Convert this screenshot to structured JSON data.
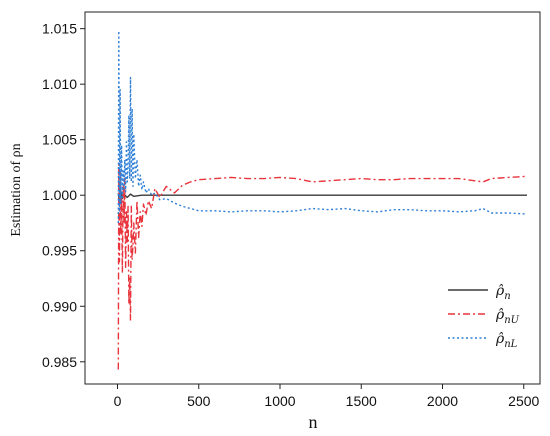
{
  "chart_data": {
    "type": "line",
    "title": "",
    "xlabel": "n",
    "ylabel": "Estimation of ρn",
    "xlim": [
      -200,
      2600
    ],
    "ylim": [
      0.983,
      1.0165
    ],
    "xticks": [
      0,
      500,
      1000,
      1500,
      2000,
      2500
    ],
    "xtick_labels": [
      "0",
      "500",
      "1000",
      "1500",
      "2000",
      "2500"
    ],
    "yticks": [
      0.985,
      0.99,
      0.995,
      1.0,
      1.005,
      1.01,
      1.015
    ],
    "ytick_labels": [
      "0.985",
      "0.990",
      "0.995",
      "1.000",
      "1.005",
      "1.010",
      "1.015"
    ],
    "grid": false,
    "legend_position": "lower-right",
    "series": [
      {
        "name": "ρ̂n",
        "legend_main": "ρ̂",
        "legend_sub": "n",
        "color": "#3a3a3a",
        "dash": "solid",
        "x": [
          5,
          10,
          20,
          30,
          40,
          60,
          80,
          100,
          150,
          200,
          300,
          500,
          1000,
          1500,
          2000,
          2520
        ],
        "y": [
          1.0002,
          0.9996,
          1.0004,
          0.9997,
          1.0001,
          0.9998,
          1.0001,
          0.9999,
          1.0,
          1.0,
          1.0,
          1.0,
          1.0,
          1.0,
          1.0,
          1.0
        ]
      },
      {
        "name": "ρ̂nU",
        "legend_main": "ρ̂",
        "legend_sub": "nU",
        "color": "#e8343c",
        "dash": "dashdot",
        "x": [
          5,
          8,
          12,
          16,
          20,
          25,
          30,
          35,
          40,
          45,
          50,
          55,
          60,
          65,
          70,
          75,
          80,
          85,
          90,
          95,
          100,
          110,
          120,
          130,
          140,
          150,
          160,
          175,
          190,
          210,
          230,
          260,
          300,
          350,
          400,
          450,
          500,
          600,
          700,
          800,
          900,
          1000,
          1100,
          1200,
          1300,
          1400,
          1500,
          1600,
          1700,
          1800,
          1900,
          2000,
          2100,
          2200,
          2250,
          2300,
          2400,
          2520
        ],
        "y": [
          0.9843,
          1.0028,
          0.994,
          1.0022,
          0.9965,
          0.9998,
          0.993,
          1.001,
          0.9975,
          1.0015,
          0.9935,
          0.9985,
          0.9958,
          0.999,
          0.9902,
          0.9925,
          0.9887,
          0.999,
          0.9942,
          0.9955,
          0.9975,
          0.9948,
          0.9995,
          0.9962,
          0.9985,
          0.9972,
          0.9992,
          0.9982,
          0.9995,
          0.9988,
          1.0006,
          0.9998,
          1.0008,
          1.0002,
          1.0009,
          1.0012,
          1.0014,
          1.0015,
          1.0016,
          1.0015,
          1.0015,
          1.0016,
          1.0015,
          1.0012,
          1.0013,
          1.0014,
          1.0015,
          1.0014,
          1.0014,
          1.0015,
          1.0015,
          1.0015,
          1.0015,
          1.0013,
          1.0012,
          1.0015,
          1.0016,
          1.0017
        ]
      },
      {
        "name": "ρ̂nL",
        "legend_main": "ρ̂",
        "legend_sub": "nL",
        "color": "#2f7fd6",
        "dash": "dotted",
        "x": [
          5,
          8,
          12,
          16,
          20,
          25,
          30,
          35,
          40,
          45,
          50,
          55,
          60,
          65,
          70,
          75,
          80,
          85,
          90,
          95,
          100,
          110,
          120,
          130,
          140,
          150,
          160,
          175,
          190,
          210,
          230,
          260,
          300,
          350,
          400,
          450,
          500,
          600,
          700,
          800,
          900,
          1000,
          1100,
          1200,
          1300,
          1400,
          1500,
          1600,
          1700,
          1800,
          1900,
          2000,
          2100,
          2200,
          2250,
          2300,
          2400,
          2520
        ],
        "y": [
          0.9975,
          1.0148,
          0.9985,
          1.0095,
          0.9992,
          1.0045,
          0.9998,
          1.0022,
          1.0005,
          1.0032,
          1.0003,
          1.0048,
          1.0012,
          1.0025,
          1.0072,
          1.0015,
          1.0106,
          1.0012,
          1.0078,
          1.0008,
          1.0055,
          1.0015,
          1.0032,
          1.0008,
          1.0018,
          1.0005,
          1.0012,
          1.0002,
          1.0006,
          1.0,
          1.0002,
          0.9996,
          0.9997,
          0.9993,
          0.999,
          0.9988,
          0.9986,
          0.9986,
          0.9985,
          0.9986,
          0.9986,
          0.9985,
          0.9986,
          0.9988,
          0.9987,
          0.9988,
          0.9986,
          0.9985,
          0.9987,
          0.9987,
          0.9986,
          0.9986,
          0.9985,
          0.9986,
          0.9988,
          0.9984,
          0.9984,
          0.9983
        ]
      }
    ]
  }
}
